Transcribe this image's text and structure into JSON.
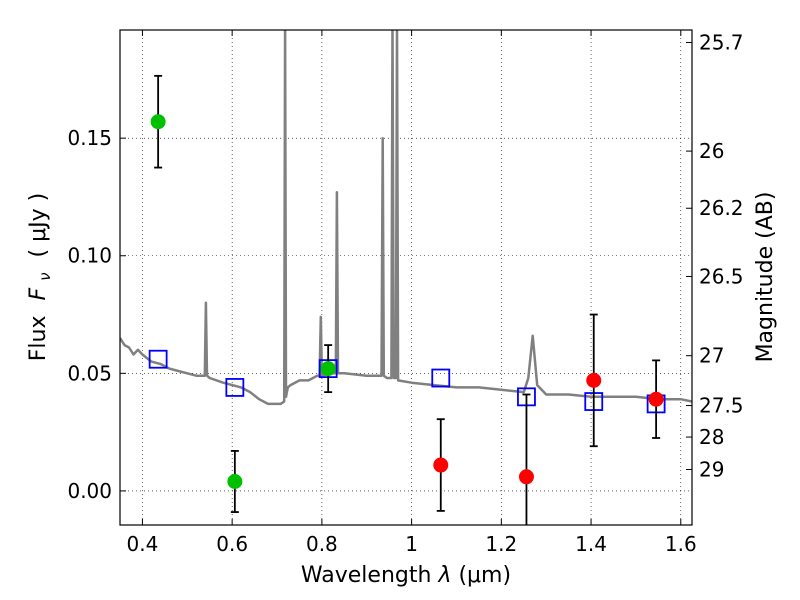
{
  "chart_data": {
    "type": "scatter",
    "xlabel_prefix": "Wavelength",
    "xlabel_symbol": "λ",
    "xlabel_unit": "(μm)",
    "ylabel_prefix": "Flux",
    "ylabel_symbol": "F",
    "ylabel_sub": "ν",
    "ylabel_unit": "( μJy )",
    "y2label": "Magnitude (AB)",
    "xlim": [
      0.35,
      1.625
    ],
    "ylim": [
      -0.0145,
      0.196
    ],
    "grid": true,
    "x_ticks": [
      {
        "value": 0.4,
        "label": "0.4"
      },
      {
        "value": 0.6,
        "label": "0.6"
      },
      {
        "value": 0.8,
        "label": "0.8"
      },
      {
        "value": 1.0,
        "label": "1"
      },
      {
        "value": 1.2,
        "label": "1.2"
      },
      {
        "value": 1.4,
        "label": "1.4"
      },
      {
        "value": 1.6,
        "label": "1.6"
      }
    ],
    "y_ticks": [
      {
        "value": 0.0,
        "label": "0.00"
      },
      {
        "value": 0.05,
        "label": "0.05"
      },
      {
        "value": 0.1,
        "label": "0.10"
      },
      {
        "value": 0.15,
        "label": "0.15"
      }
    ],
    "y2_ticks": [
      {
        "flux": 0.1907,
        "label": "25.7"
      },
      {
        "flux": 0.1445,
        "label": "26"
      },
      {
        "flux": 0.1202,
        "label": "26.2"
      },
      {
        "flux": 0.0912,
        "label": "26.5"
      },
      {
        "flux": 0.0575,
        "label": "27"
      },
      {
        "flux": 0.0363,
        "label": "27.5"
      },
      {
        "flux": 0.0229,
        "label": "28"
      },
      {
        "flux": 0.0091,
        "label": "29"
      }
    ],
    "series": [
      {
        "kind": "sed_model_line",
        "color": "#808080",
        "x": [
          0.35,
          0.36,
          0.37,
          0.38,
          0.39,
          0.4,
          0.42,
          0.44,
          0.46,
          0.48,
          0.5,
          0.52,
          0.539,
          0.5415,
          0.544,
          0.55,
          0.58,
          0.6,
          0.62,
          0.64,
          0.66,
          0.68,
          0.7,
          0.708,
          0.716,
          0.718,
          0.72,
          0.724,
          0.73,
          0.75,
          0.77,
          0.79,
          0.795,
          0.7975,
          0.8,
          0.82,
          0.831,
          0.8335,
          0.836,
          0.85,
          0.9,
          0.933,
          0.9355,
          0.938,
          0.945,
          0.955,
          0.9575,
          0.96,
          0.965,
          0.9675,
          0.97,
          1.0,
          1.05,
          1.1,
          1.15,
          1.2,
          1.25,
          1.26,
          1.27,
          1.28,
          1.3,
          1.35,
          1.4,
          1.45,
          1.5,
          1.55,
          1.6,
          1.625
        ],
        "y": [
          0.065,
          0.062,
          0.061,
          0.058,
          0.06,
          0.058,
          0.055,
          0.054,
          0.052,
          0.051,
          0.05,
          0.049,
          0.049,
          0.08,
          0.049,
          0.048,
          0.046,
          0.045,
          0.044,
          0.042,
          0.039,
          0.037,
          0.037,
          0.037,
          0.038,
          0.2,
          0.04,
          0.044,
          0.045,
          0.047,
          0.047,
          0.049,
          0.049,
          0.074,
          0.049,
          0.05,
          0.05,
          0.127,
          0.05,
          0.05,
          0.049,
          0.049,
          0.15,
          0.049,
          0.048,
          0.048,
          0.2,
          0.048,
          0.048,
          0.2,
          0.047,
          0.046,
          0.045,
          0.044,
          0.044,
          0.043,
          0.042,
          0.048,
          0.066,
          0.045,
          0.041,
          0.041,
          0.04,
          0.04,
          0.04,
          0.039,
          0.039,
          0.038
        ]
      },
      {
        "kind": "model_photometry",
        "marker": "open-square",
        "color": "#0000ff",
        "x": [
          0.435,
          0.606,
          0.814,
          1.065,
          1.256,
          1.406,
          1.545
        ],
        "y": [
          0.056,
          0.044,
          0.052,
          0.048,
          0.04,
          0.038,
          0.037
        ]
      },
      {
        "kind": "observed",
        "marker": "filled-circle",
        "color": "#00c000",
        "x": [
          0.435,
          0.606,
          0.814
        ],
        "y": [
          0.157,
          0.004,
          0.052
        ],
        "yerr": [
          0.0195,
          0.013,
          0.01
        ]
      },
      {
        "kind": "observed",
        "marker": "filled-circle",
        "color": "#ff0000",
        "x": [
          1.065,
          1.256,
          1.406,
          1.545
        ],
        "y": [
          0.011,
          0.006,
          0.047,
          0.039
        ],
        "yerr": [
          0.0195,
          0.035,
          0.028,
          0.0165
        ]
      }
    ]
  }
}
